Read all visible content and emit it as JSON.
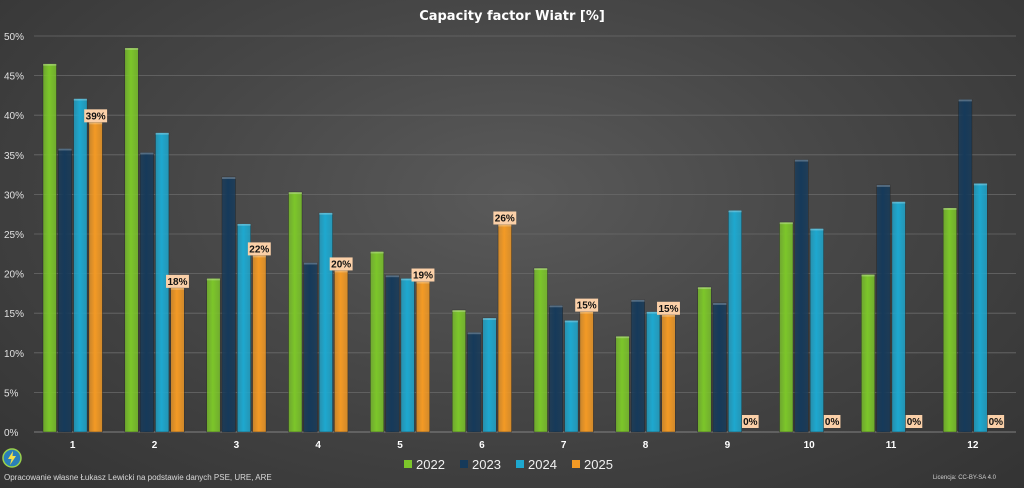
{
  "chart_data": {
    "type": "bar",
    "title": "Capacity factor Wiatr [%]",
    "categories": [
      "1",
      "2",
      "3",
      "4",
      "5",
      "6",
      "7",
      "8",
      "9",
      "10",
      "11",
      "12"
    ],
    "series": [
      {
        "name": "2022",
        "color": "#7cc62a",
        "values": [
          46.5,
          48.5,
          19.4,
          30.3,
          22.8,
          15.4,
          20.7,
          12.1,
          18.3,
          26.5,
          19.9,
          28.3
        ]
      },
      {
        "name": "2023",
        "color": "#163a5a",
        "values": [
          35.8,
          35.3,
          32.2,
          21.4,
          19.8,
          12.6,
          16.0,
          16.7,
          16.3,
          34.4,
          31.2,
          42.0
        ]
      },
      {
        "name": "2024",
        "color": "#1ea8cf",
        "values": [
          42.1,
          37.8,
          26.3,
          27.7,
          19.4,
          14.4,
          14.1,
          15.2,
          28.0,
          25.7,
          29.1,
          31.4
        ]
      },
      {
        "name": "2025",
        "color": "#f39a25",
        "values": [
          39.1,
          18.2,
          22.3,
          20.4,
          19.0,
          26.2,
          15.2,
          14.8,
          0,
          0,
          0,
          0
        ]
      }
    ],
    "data_labels_2025": [
      "39%",
      "18%",
      "22%",
      "20%",
      "19%",
      "26%",
      "15%",
      "15%",
      "0%",
      "0%",
      "0%",
      "0%"
    ],
    "ylim": [
      0,
      50
    ],
    "yticks": [
      "0%",
      "5%",
      "10%",
      "15%",
      "20%",
      "25%",
      "30%",
      "35%",
      "40%",
      "45%",
      "50%"
    ],
    "xlabel": "",
    "ylabel": "",
    "grid": true,
    "legend": "bottom"
  },
  "footer": {
    "source": "Opracowanie własne Łukasz Lewicki na podstawie danych PSE, URE, ARE",
    "license": "Licencja: CC-BY-SA 4.0"
  },
  "logo_icon": "lightning-logo-icon"
}
